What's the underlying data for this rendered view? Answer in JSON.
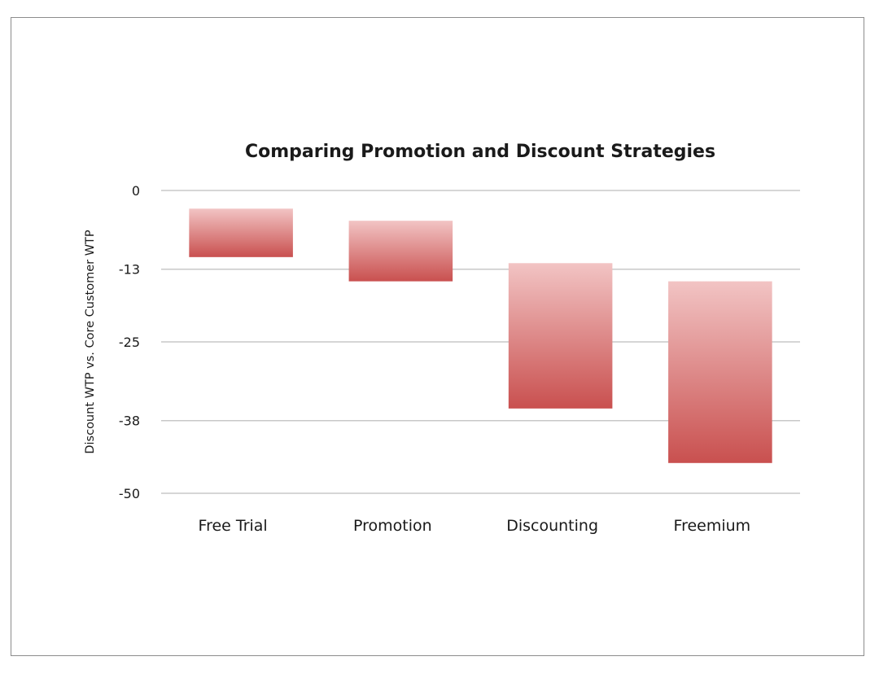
{
  "chart_data": {
    "type": "bar",
    "subtype": "floating-bar",
    "title": "Comparing Promotion and Discount Strategies",
    "xlabel": "",
    "ylabel": "Discount WTP vs. Core Customer WTP",
    "categories": [
      "Free Trial",
      "Promotion",
      "Discounting",
      "Freemium"
    ],
    "ranges": [
      {
        "category": "Free Trial",
        "top": -3,
        "bottom": -11
      },
      {
        "category": "Promotion",
        "top": -5,
        "bottom": -15
      },
      {
        "category": "Discounting",
        "top": -12,
        "bottom": -36
      },
      {
        "category": "Freemium",
        "top": -15,
        "bottom": -45
      }
    ],
    "yticks": [
      0,
      -13,
      -25,
      -38,
      -50
    ],
    "ytick_labels": [
      "0",
      "-13",
      "-25",
      "-38",
      "-50"
    ],
    "ylim": [
      -50,
      0
    ],
    "grid": true,
    "legend": "none",
    "colors": {
      "bar_top": "#f2c4c4",
      "bar_bottom": "#c9504f",
      "grid": "#c8c8c8",
      "text": "#1a1a1a"
    }
  }
}
